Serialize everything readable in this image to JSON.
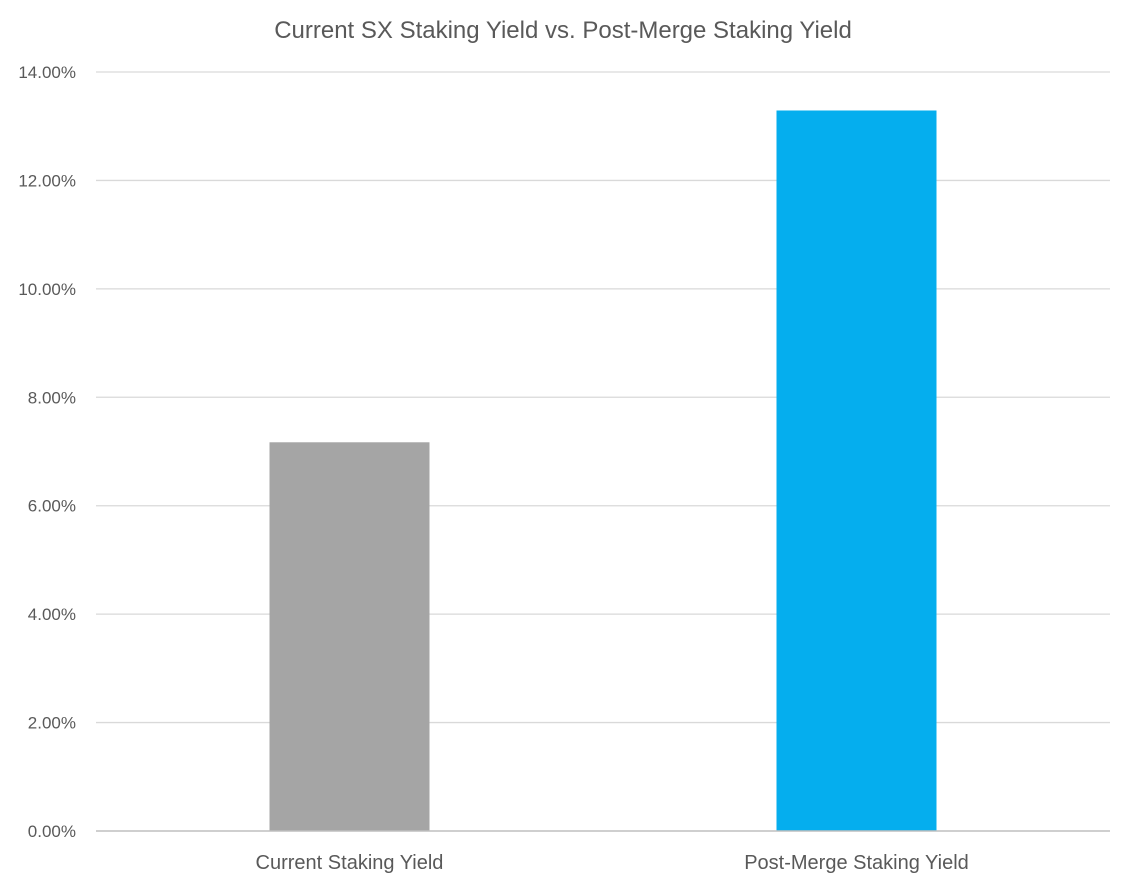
{
  "chart_data": {
    "type": "bar",
    "title": "Current SX Staking Yield vs. Post-Merge Staking Yield",
    "xlabel": "",
    "ylabel": "",
    "categories": [
      "Current Staking Yield",
      "Post-Merge Staking Yield"
    ],
    "values": [
      0.0717,
      0.1329
    ],
    "value_format": "percent",
    "ylim": [
      0,
      0.14
    ],
    "yticks": [
      0,
      0.02,
      0.04,
      0.06,
      0.08,
      0.1,
      0.12,
      0.14
    ],
    "ytick_labels": [
      "0.00%",
      "2.00%",
      "4.00%",
      "6.00%",
      "8.00%",
      "10.00%",
      "12.00%",
      "14.00%"
    ],
    "bar_colors": [
      "#a5a5a5",
      "#05aeee"
    ],
    "grid": true,
    "legend": "none"
  },
  "colors": {
    "gridline": "#d9d9d9",
    "axis_line": "#bfbfbf",
    "text": "#595959",
    "background": "#ffffff"
  }
}
